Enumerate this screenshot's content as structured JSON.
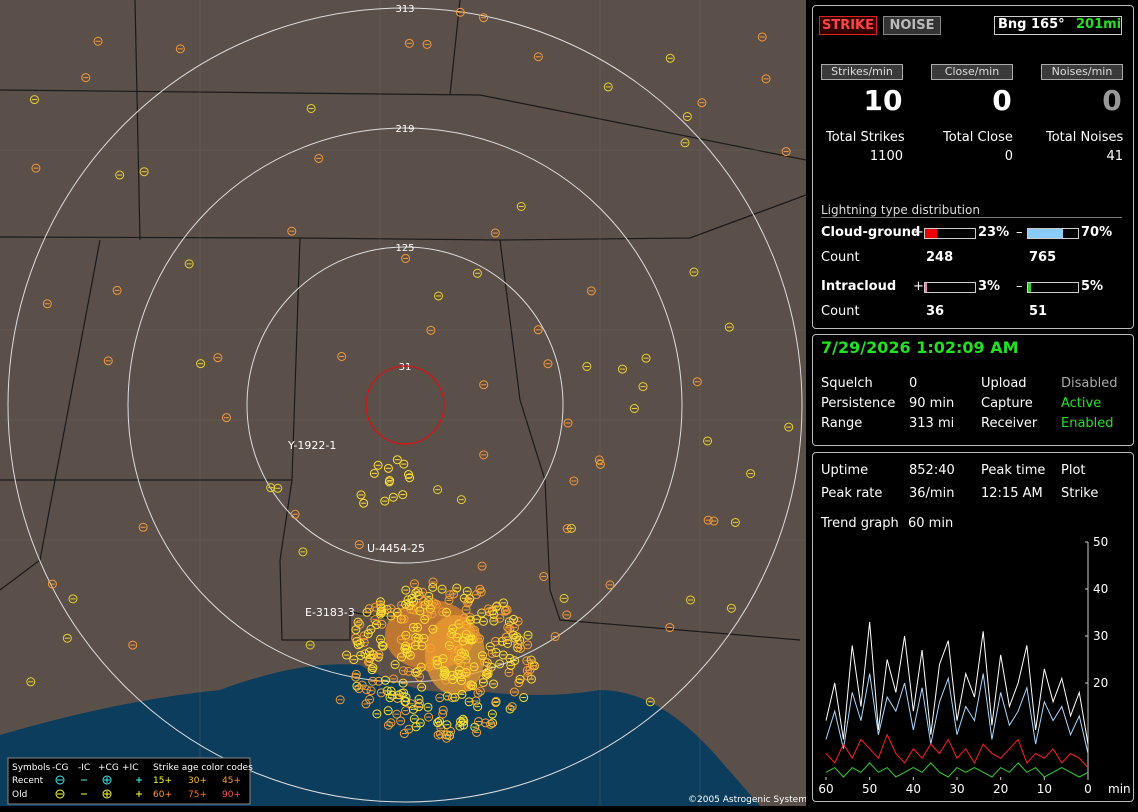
{
  "header": {
    "buttons": [
      "STRIKE",
      "NOISE"
    ],
    "bearing": "Bng 165°",
    "distance": "201mi"
  },
  "rates": [
    {
      "label": "Strikes/min",
      "value": 10,
      "total_label": "Total Strikes",
      "total": 1100
    },
    {
      "label": "Close/min",
      "value": 0,
      "total_label": "Total Close",
      "total": 0
    },
    {
      "label": "Noises/min",
      "value": 0,
      "total_label": "Total Noises",
      "total": 41
    }
  ],
  "distribution": {
    "title": "Lightning type distribution",
    "count_label": "Count",
    "rows": [
      {
        "name": "Cloud-ground",
        "positive": {
          "sign": "+",
          "percent": 23,
          "percent_label": "23%",
          "count": 248
        },
        "negative": {
          "sign": "–",
          "percent": 70,
          "percent_label": "70%",
          "count": 765
        }
      },
      {
        "name": "Intracloud",
        "positive": {
          "sign": "+",
          "percent": 3,
          "percent_label": "3%",
          "count": 36
        },
        "negative": {
          "sign": "–",
          "percent": 5,
          "percent_label": "5%",
          "count": 51
        }
      }
    ]
  },
  "status": {
    "datetime": "7/29/2026 1:02:09 AM",
    "rows": [
      [
        "Squelch",
        "0",
        "Upload",
        "Disabled"
      ],
      [
        "Persistence",
        "90 min",
        "Capture",
        "Active"
      ],
      [
        "Range",
        "313 mi",
        "Receiver",
        "Enabled"
      ]
    ]
  },
  "stats": {
    "rows": [
      [
        "Uptime",
        "852:40",
        "Peak time",
        "Plot"
      ],
      [
        "Peak rate",
        "36/min",
        "12:15 AM",
        "Strike"
      ]
    ],
    "trend_label": "Trend graph",
    "trend_span": "60 min"
  },
  "trend_graph": {
    "xlim": [
      60,
      0
    ],
    "ylim": [
      0,
      50
    ],
    "xticks": [
      60,
      50,
      40,
      30,
      20,
      10,
      0
    ],
    "yticks": [
      20,
      30,
      40,
      50
    ],
    "x_unit": "min",
    "x": [
      60,
      58,
      56,
      54,
      52,
      50,
      48,
      46,
      44,
      42,
      40,
      38,
      36,
      34,
      32,
      30,
      28,
      26,
      24,
      22,
      20,
      18,
      16,
      14,
      12,
      10,
      8,
      6,
      4,
      2,
      0
    ],
    "series": [
      {
        "color": "#ffffff",
        "values": [
          12,
          20,
          8,
          28,
          15,
          33,
          10,
          25,
          18,
          30,
          14,
          27,
          9,
          24,
          29,
          12,
          22,
          17,
          31,
          11,
          26,
          15,
          20,
          28,
          10,
          23,
          16,
          21,
          13,
          18,
          7
        ]
      },
      {
        "color": "#a8d8ff",
        "values": [
          8,
          14,
          6,
          18,
          12,
          22,
          9,
          17,
          14,
          20,
          10,
          19,
          7,
          16,
          21,
          9,
          15,
          12,
          22,
          8,
          18,
          11,
          14,
          19,
          7,
          16,
          12,
          15,
          9,
          13,
          5
        ]
      },
      {
        "color": "#ff2020",
        "values": [
          5,
          3,
          7,
          4,
          8,
          6,
          4,
          9,
          5,
          3,
          6,
          4,
          7,
          5,
          8,
          4,
          6,
          3,
          7,
          5,
          4,
          6,
          8,
          3,
          5,
          4,
          6,
          3,
          5,
          4,
          2
        ]
      },
      {
        "color": "#30d030",
        "values": [
          1,
          2,
          0,
          2,
          1,
          3,
          1,
          2,
          0,
          1,
          2,
          1,
          3,
          1,
          0,
          2,
          1,
          2,
          1,
          0,
          2,
          1,
          3,
          1,
          2,
          0,
          1,
          2,
          1,
          0,
          1
        ]
      }
    ]
  },
  "map": {
    "range_rings": [
      313,
      219,
      125,
      31
    ],
    "site_labels": [
      "Y-1922-1",
      "U-4454-25",
      "E-3183-3"
    ],
    "copyright": "©2005 Astrogenic Systems",
    "legend": {
      "symbols_label": "Symbols",
      "types": [
        "-CG",
        "-IC",
        "+CG",
        "+IC"
      ],
      "age_title": "Strike age color codes",
      "recent": "Recent",
      "old": "Old",
      "recent_ages": [
        "15+",
        "30+",
        "45+"
      ],
      "old_ages": [
        "60+",
        "75+",
        "90+"
      ]
    }
  }
}
